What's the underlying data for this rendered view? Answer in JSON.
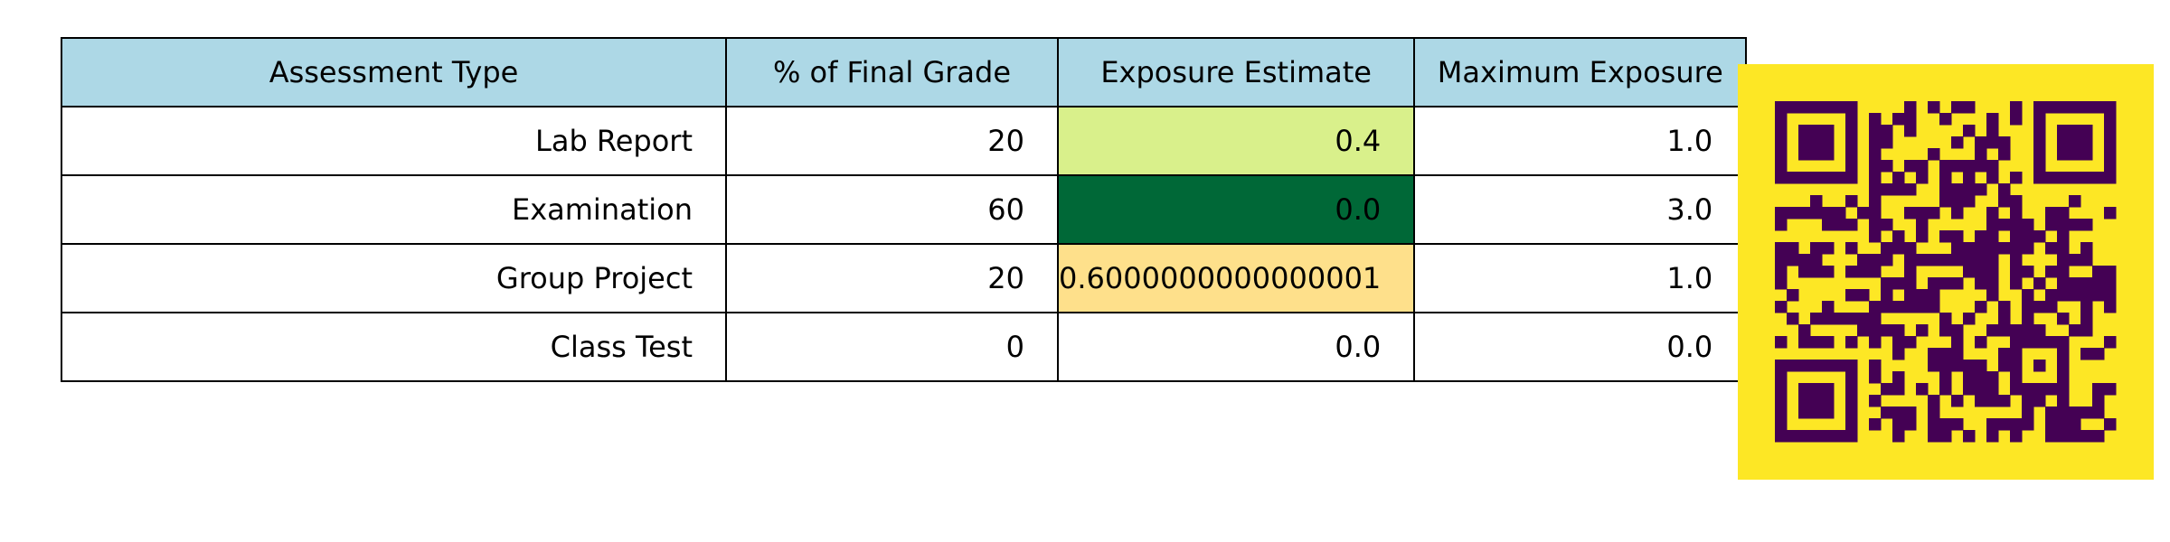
{
  "chart_data": {
    "type": "table",
    "columns": [
      "Assessment Type",
      "% of Final Grade",
      "Exposure Estimate",
      "Maximum Exposure"
    ],
    "rows": [
      [
        "Lab Report",
        "20",
        "0.4",
        "1.0"
      ],
      [
        "Examination",
        "60",
        "0.0",
        "3.0"
      ],
      [
        "Group Project",
        "20",
        "0.6000000000000001",
        "1.0"
      ],
      [
        "Class Test",
        "0",
        "0.0",
        "0.0"
      ]
    ],
    "cell_colors": {
      "exposure_estimate": [
        "#d9f08b",
        "#006837",
        "#fee08b",
        "#ffffff"
      ]
    },
    "header_color": "#add8e6",
    "qr_image": {
      "foreground": "#440154",
      "background": "#fde725"
    }
  }
}
